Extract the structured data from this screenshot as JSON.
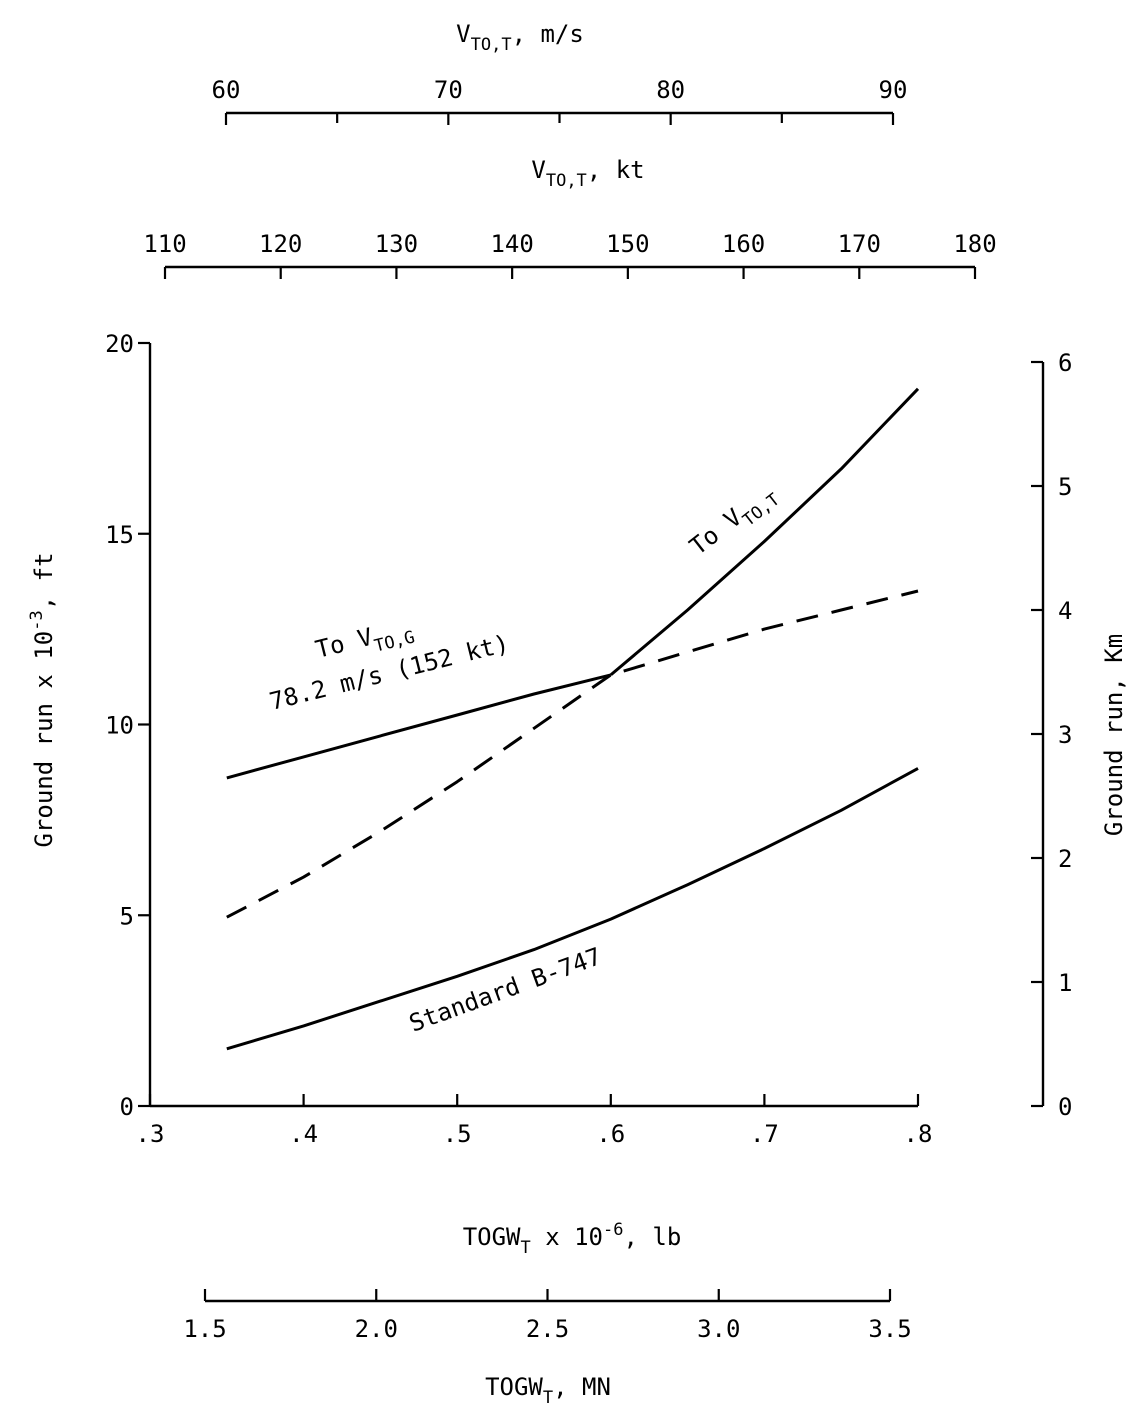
{
  "chart_data": {
    "type": "line",
    "x_range": [
      0.3,
      0.8
    ],
    "y_range": [
      0,
      20
    ],
    "axes": {
      "bottom": {
        "ticks": [
          ".3",
          ".4",
          ".5",
          ".6",
          ".7",
          ".8"
        ],
        "label_base": "TOGW",
        "label_sub": "T",
        "label_mid": " x 10",
        "label_sup": "-6",
        "label_end": ", lb"
      },
      "bottom2": {
        "ticks": [
          "1.5",
          "2.0",
          "2.5",
          "3.0",
          "3.5"
        ],
        "label_base": "TOGW",
        "label_sub": "T",
        "label_end": ", MN"
      },
      "top_ms": {
        "ticks": [
          "60",
          "70",
          "80",
          "90"
        ],
        "label_base": "V",
        "label_sub": "TO,T",
        "label_end": ", m/s"
      },
      "top_kt": {
        "ticks": [
          "110",
          "120",
          "130",
          "140",
          "150",
          "160",
          "170",
          "180"
        ],
        "label_base": "V",
        "label_sub": "TO,T",
        "label_end": ", kt"
      },
      "left": {
        "ticks": [
          "0",
          "5",
          "10",
          "15",
          "20"
        ],
        "label_base": "Ground run x 10",
        "label_sup": "-3",
        "label_end": ", ft"
      },
      "right": {
        "ticks": [
          "0",
          "1",
          "2",
          "3",
          "4",
          "5",
          "6"
        ],
        "label": "Ground run, Km"
      }
    },
    "series": [
      {
        "style": "solid",
        "x": [
          0.35,
          0.4,
          0.45,
          0.5,
          0.55,
          0.6
        ],
        "y": [
          8.6,
          9.15,
          9.7,
          10.25,
          10.8,
          11.3
        ]
      },
      {
        "style": "dashed",
        "x": [
          0.35,
          0.4,
          0.45,
          0.5,
          0.55,
          0.6,
          0.65,
          0.7,
          0.75,
          0.8
        ],
        "y": [
          4.95,
          6.0,
          7.2,
          8.5,
          9.9,
          11.3,
          11.9,
          12.5,
          13.0,
          13.5
        ]
      },
      {
        "style": "solid",
        "x": [
          0.6,
          0.65,
          0.7,
          0.75,
          0.8
        ],
        "y": [
          11.3,
          13.0,
          14.8,
          16.7,
          18.8
        ]
      },
      {
        "style": "solid",
        "x": [
          0.35,
          0.4,
          0.45,
          0.5,
          0.55,
          0.6,
          0.65,
          0.7,
          0.75,
          0.8
        ],
        "y": [
          1.5,
          2.1,
          2.75,
          3.4,
          4.1,
          4.9,
          5.8,
          6.75,
          7.75,
          8.85
        ]
      }
    ],
    "annotations": {
      "vtog_prefix": "To V",
      "vtog_sub": "TO,G",
      "vtog_speed": "78.2 m/s (152 kt)",
      "vtot_prefix": "To V",
      "vtot_sub": "TO,T",
      "standard": "Standard B-747"
    }
  }
}
